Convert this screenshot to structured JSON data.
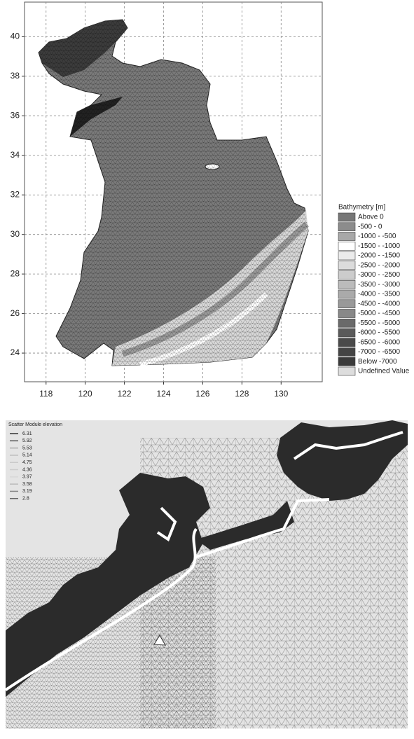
{
  "map_top": {
    "xlim": [
      116.9,
      132.1
    ],
    "ylim": [
      22.55,
      41.75
    ],
    "xticks": [
      118,
      120,
      122,
      124,
      126,
      128,
      130
    ],
    "yticks": [
      24,
      26,
      28,
      30,
      32,
      34,
      36,
      38,
      40
    ],
    "grid": true,
    "legend": {
      "title": "Bathymetry [m]",
      "entries": [
        {
          "label": "Above 0",
          "color": "#777777"
        },
        {
          "label": "-500 - 0",
          "color": "#8c8c8c"
        },
        {
          "label": "-1000 - -500",
          "color": "#a8a8a8"
        },
        {
          "label": "-1500 - -1000",
          "color": "#ffffff"
        },
        {
          "label": "-2000 - -1500",
          "color": "#ebebeb"
        },
        {
          "label": "-2500 - -2000",
          "color": "#dcdcdc"
        },
        {
          "label": "-3000 - -2500",
          "color": "#cccccc"
        },
        {
          "label": "-3500 - -3000",
          "color": "#bbbbbb"
        },
        {
          "label": "-4000 - -3500",
          "color": "#aaaaaa"
        },
        {
          "label": "-4500 - -4000",
          "color": "#999999"
        },
        {
          "label": "-5000 - -4500",
          "color": "#888888"
        },
        {
          "label": "-5500 - -5000",
          "color": "#6a6a6a"
        },
        {
          "label": "-6000 - -5500",
          "color": "#5a5a5a"
        },
        {
          "label": "-6500 - -6000",
          "color": "#4a4a4a"
        },
        {
          "label": "-7000 - -6500",
          "color": "#444444"
        },
        {
          "label": "Below -7000",
          "color": "#3a3a3a"
        },
        {
          "label": "Undefined Value",
          "color": "#dddddd"
        }
      ]
    }
  },
  "map_bottom": {
    "legend": {
      "title": "Scatter Module elevation",
      "entries": [
        {
          "value": 6.31,
          "color": "#333333"
        },
        {
          "value": 5.92,
          "color": "#555555"
        },
        {
          "value": 5.53,
          "color": "#aaaaaa"
        },
        {
          "value": 5.14,
          "color": "#bbbbbb"
        },
        {
          "value": 4.75,
          "color": "#c8c8c8"
        },
        {
          "value": 4.36,
          "color": "#cccccc"
        },
        {
          "value": 3.97,
          "color": "#d8d8d8"
        },
        {
          "value": 3.58,
          "color": "#bbbbbb"
        },
        {
          "value": 3.19,
          "color": "#888888"
        },
        {
          "value": 2.8,
          "color": "#666666"
        }
      ]
    }
  }
}
